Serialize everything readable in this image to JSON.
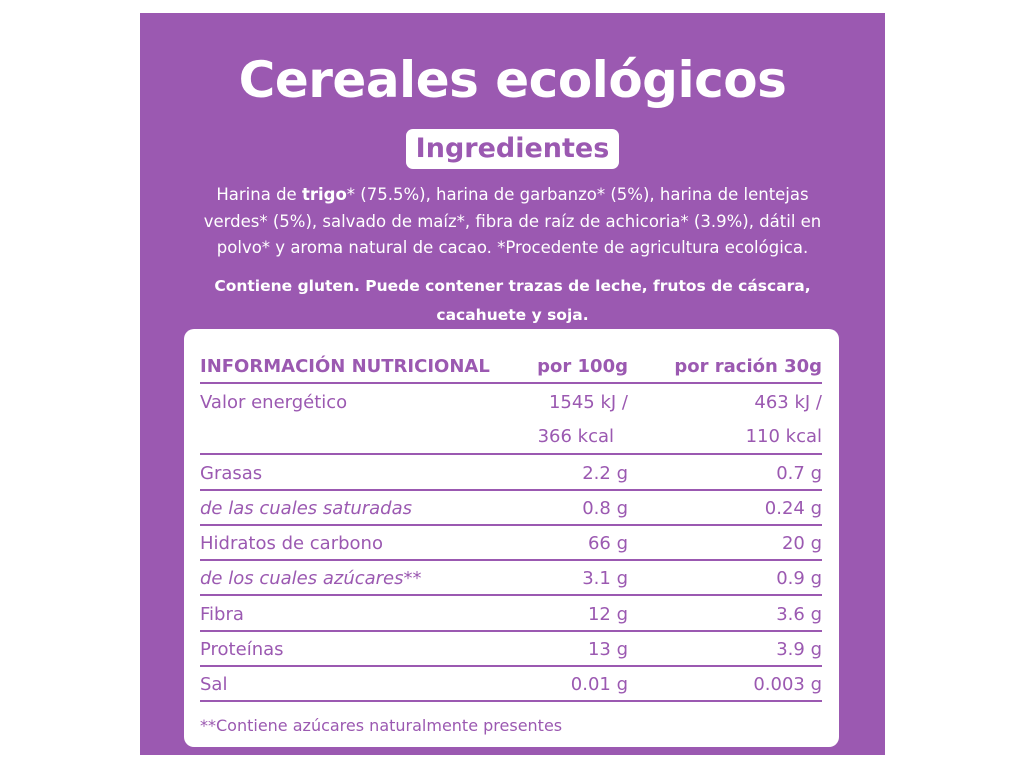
{
  "title": "Cereales ecológicos",
  "ingredients_heading": "Ingredientes",
  "ingredients": {
    "part1": "Harina de ",
    "bold": "trigo",
    "part2": "* (75.5%), harina de garbanzo* (5%), harina de lentejas verdes* (5%), salvado de maíz*, fibra de raíz de achicoria* (3.9%), dátil en polvo* y aroma natural de cacao. *Procedente de agricultura ecológica.",
    "allergens": "Contiene gluten. Puede contener trazas de leche, frutos de cáscara, cacahuete y soja."
  },
  "nutrition": {
    "headers": [
      "INFORMACIÓN NUTRICIONAL",
      "por 100g",
      "por ración 30g"
    ],
    "energy": {
      "label": "Valor energético",
      "per100_line1": "1545 kJ /",
      "per100_line2": "366 kcal",
      "serving_line1": "463 kJ /",
      "serving_line2": "110 kcal"
    },
    "rows": [
      {
        "label": "Grasas",
        "per100": "2.2 g",
        "serving": "0.7 g",
        "italic": false
      },
      {
        "label": "de las cuales saturadas",
        "per100": "0.8 g",
        "serving": "0.24 g",
        "italic": true
      },
      {
        "label": "Hidratos de carbono",
        "per100": "66 g",
        "serving": "20 g",
        "italic": false
      },
      {
        "label": "de los cuales azúcares**",
        "per100": "3.1 g",
        "serving": "0.9 g",
        "italic": true
      },
      {
        "label": "Fibra",
        "per100": "12 g",
        "serving": "3.6 g",
        "italic": false
      },
      {
        "label": "Proteínas",
        "per100": "13 g",
        "serving": "3.9 g",
        "italic": false
      },
      {
        "label": "Sal",
        "per100": "0.01 g",
        "serving": "0.003 g",
        "italic": false
      }
    ],
    "footnote": "**Contiene azúcares naturalmente presentes"
  },
  "colors": {
    "brand_purple": "#9b59b1",
    "white": "#ffffff"
  }
}
